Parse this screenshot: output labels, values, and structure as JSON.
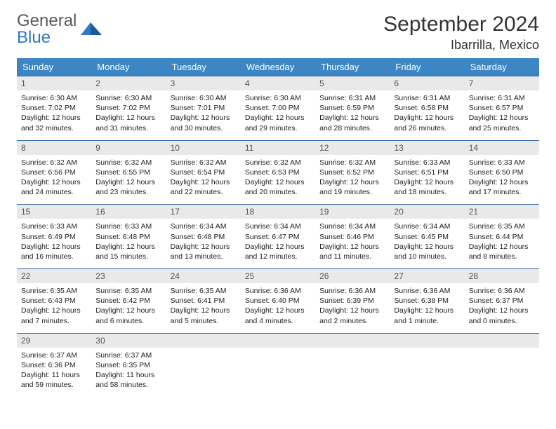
{
  "brand": {
    "general": "General",
    "blue": "Blue"
  },
  "title": "September 2024",
  "location": "Ibarrilla, Mexico",
  "colors": {
    "header_bg": "#3d86c6",
    "header_text": "#ffffff",
    "row_border": "#2f6aa8",
    "daynum_bg": "#e9e9e9",
    "logo_gray": "#5a5a5a",
    "logo_blue": "#2f78c4"
  },
  "weekdays": [
    "Sunday",
    "Monday",
    "Tuesday",
    "Wednesday",
    "Thursday",
    "Friday",
    "Saturday"
  ],
  "weeks": [
    [
      {
        "num": "1",
        "sunrise": "Sunrise: 6:30 AM",
        "sunset": "Sunset: 7:02 PM",
        "day1": "Daylight: 12 hours",
        "day2": "and 32 minutes."
      },
      {
        "num": "2",
        "sunrise": "Sunrise: 6:30 AM",
        "sunset": "Sunset: 7:02 PM",
        "day1": "Daylight: 12 hours",
        "day2": "and 31 minutes."
      },
      {
        "num": "3",
        "sunrise": "Sunrise: 6:30 AM",
        "sunset": "Sunset: 7:01 PM",
        "day1": "Daylight: 12 hours",
        "day2": "and 30 minutes."
      },
      {
        "num": "4",
        "sunrise": "Sunrise: 6:30 AM",
        "sunset": "Sunset: 7:00 PM",
        "day1": "Daylight: 12 hours",
        "day2": "and 29 minutes."
      },
      {
        "num": "5",
        "sunrise": "Sunrise: 6:31 AM",
        "sunset": "Sunset: 6:59 PM",
        "day1": "Daylight: 12 hours",
        "day2": "and 28 minutes."
      },
      {
        "num": "6",
        "sunrise": "Sunrise: 6:31 AM",
        "sunset": "Sunset: 6:58 PM",
        "day1": "Daylight: 12 hours",
        "day2": "and 26 minutes."
      },
      {
        "num": "7",
        "sunrise": "Sunrise: 6:31 AM",
        "sunset": "Sunset: 6:57 PM",
        "day1": "Daylight: 12 hours",
        "day2": "and 25 minutes."
      }
    ],
    [
      {
        "num": "8",
        "sunrise": "Sunrise: 6:32 AM",
        "sunset": "Sunset: 6:56 PM",
        "day1": "Daylight: 12 hours",
        "day2": "and 24 minutes."
      },
      {
        "num": "9",
        "sunrise": "Sunrise: 6:32 AM",
        "sunset": "Sunset: 6:55 PM",
        "day1": "Daylight: 12 hours",
        "day2": "and 23 minutes."
      },
      {
        "num": "10",
        "sunrise": "Sunrise: 6:32 AM",
        "sunset": "Sunset: 6:54 PM",
        "day1": "Daylight: 12 hours",
        "day2": "and 22 minutes."
      },
      {
        "num": "11",
        "sunrise": "Sunrise: 6:32 AM",
        "sunset": "Sunset: 6:53 PM",
        "day1": "Daylight: 12 hours",
        "day2": "and 20 minutes."
      },
      {
        "num": "12",
        "sunrise": "Sunrise: 6:32 AM",
        "sunset": "Sunset: 6:52 PM",
        "day1": "Daylight: 12 hours",
        "day2": "and 19 minutes."
      },
      {
        "num": "13",
        "sunrise": "Sunrise: 6:33 AM",
        "sunset": "Sunset: 6:51 PM",
        "day1": "Daylight: 12 hours",
        "day2": "and 18 minutes."
      },
      {
        "num": "14",
        "sunrise": "Sunrise: 6:33 AM",
        "sunset": "Sunset: 6:50 PM",
        "day1": "Daylight: 12 hours",
        "day2": "and 17 minutes."
      }
    ],
    [
      {
        "num": "15",
        "sunrise": "Sunrise: 6:33 AM",
        "sunset": "Sunset: 6:49 PM",
        "day1": "Daylight: 12 hours",
        "day2": "and 16 minutes."
      },
      {
        "num": "16",
        "sunrise": "Sunrise: 6:33 AM",
        "sunset": "Sunset: 6:48 PM",
        "day1": "Daylight: 12 hours",
        "day2": "and 15 minutes."
      },
      {
        "num": "17",
        "sunrise": "Sunrise: 6:34 AM",
        "sunset": "Sunset: 6:48 PM",
        "day1": "Daylight: 12 hours",
        "day2": "and 13 minutes."
      },
      {
        "num": "18",
        "sunrise": "Sunrise: 6:34 AM",
        "sunset": "Sunset: 6:47 PM",
        "day1": "Daylight: 12 hours",
        "day2": "and 12 minutes."
      },
      {
        "num": "19",
        "sunrise": "Sunrise: 6:34 AM",
        "sunset": "Sunset: 6:46 PM",
        "day1": "Daylight: 12 hours",
        "day2": "and 11 minutes."
      },
      {
        "num": "20",
        "sunrise": "Sunrise: 6:34 AM",
        "sunset": "Sunset: 6:45 PM",
        "day1": "Daylight: 12 hours",
        "day2": "and 10 minutes."
      },
      {
        "num": "21",
        "sunrise": "Sunrise: 6:35 AM",
        "sunset": "Sunset: 6:44 PM",
        "day1": "Daylight: 12 hours",
        "day2": "and 8 minutes."
      }
    ],
    [
      {
        "num": "22",
        "sunrise": "Sunrise: 6:35 AM",
        "sunset": "Sunset: 6:43 PM",
        "day1": "Daylight: 12 hours",
        "day2": "and 7 minutes."
      },
      {
        "num": "23",
        "sunrise": "Sunrise: 6:35 AM",
        "sunset": "Sunset: 6:42 PM",
        "day1": "Daylight: 12 hours",
        "day2": "and 6 minutes."
      },
      {
        "num": "24",
        "sunrise": "Sunrise: 6:35 AM",
        "sunset": "Sunset: 6:41 PM",
        "day1": "Daylight: 12 hours",
        "day2": "and 5 minutes."
      },
      {
        "num": "25",
        "sunrise": "Sunrise: 6:36 AM",
        "sunset": "Sunset: 6:40 PM",
        "day1": "Daylight: 12 hours",
        "day2": "and 4 minutes."
      },
      {
        "num": "26",
        "sunrise": "Sunrise: 6:36 AM",
        "sunset": "Sunset: 6:39 PM",
        "day1": "Daylight: 12 hours",
        "day2": "and 2 minutes."
      },
      {
        "num": "27",
        "sunrise": "Sunrise: 6:36 AM",
        "sunset": "Sunset: 6:38 PM",
        "day1": "Daylight: 12 hours",
        "day2": "and 1 minute."
      },
      {
        "num": "28",
        "sunrise": "Sunrise: 6:36 AM",
        "sunset": "Sunset: 6:37 PM",
        "day1": "Daylight: 12 hours",
        "day2": "and 0 minutes."
      }
    ],
    [
      {
        "num": "29",
        "sunrise": "Sunrise: 6:37 AM",
        "sunset": "Sunset: 6:36 PM",
        "day1": "Daylight: 11 hours",
        "day2": "and 59 minutes."
      },
      {
        "num": "30",
        "sunrise": "Sunrise: 6:37 AM",
        "sunset": "Sunset: 6:35 PM",
        "day1": "Daylight: 11 hours",
        "day2": "and 58 minutes."
      },
      {
        "empty": true
      },
      {
        "empty": true
      },
      {
        "empty": true
      },
      {
        "empty": true
      },
      {
        "empty": true
      }
    ]
  ]
}
